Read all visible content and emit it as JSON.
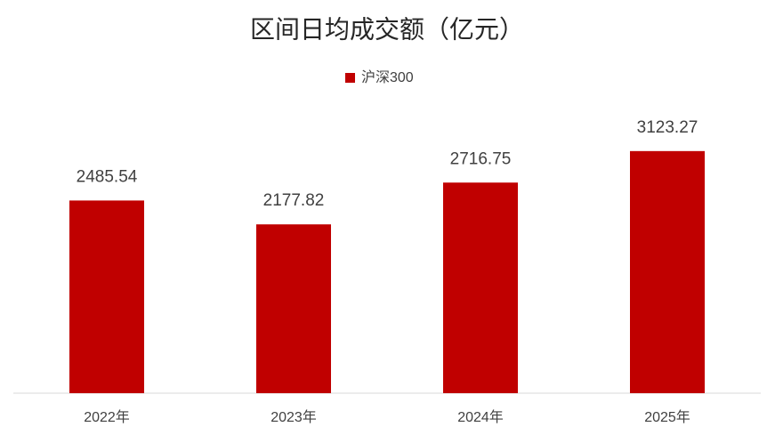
{
  "chart_data": {
    "type": "bar",
    "title": "区间日均成交额（亿元）",
    "categories": [
      "2022年",
      "2023年",
      "2024年",
      "2025年"
    ],
    "series": [
      {
        "name": "沪深300",
        "color": "#c00000",
        "values": [
          2485.54,
          2177.82,
          2716.75,
          3123.27
        ]
      }
    ],
    "ylim": [
      0,
      3500
    ],
    "legend": "top"
  }
}
